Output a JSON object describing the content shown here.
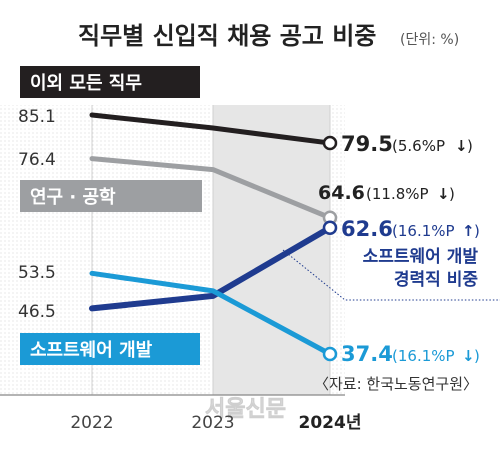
{
  "chart_data": {
    "type": "line",
    "title": "직무별 신입직 채용 공고 비중",
    "unit": "(단위: %)",
    "categories": [
      "2022",
      "2023",
      "2024년"
    ],
    "series": [
      {
        "name": "이외 모든 직무",
        "values": [
          85.1,
          82.5,
          79.5
        ],
        "start_label": "85.1",
        "end_label": "79.5",
        "change": "(5.6%P",
        "arrow": "↓",
        "color": "#231f20",
        "label_bg": "#231f20",
        "label_color": "#ffffff"
      },
      {
        "name": "연구 · 공학",
        "values": [
          76.4,
          74.2,
          64.6
        ],
        "start_label": "76.4",
        "end_label": "64.6",
        "change": "(11.8%P",
        "arrow": "↓",
        "color": "#9d9fa2",
        "label_bg": "#9d9fa2",
        "label_color": "#ffffff"
      },
      {
        "name": "소프트웨어 개발 경력직 비중",
        "values": [
          46.5,
          49.0,
          62.6
        ],
        "start_label": "46.5",
        "end_label": "62.6",
        "change": "(16.1%P",
        "arrow": "↑",
        "color": "#1f3b8f",
        "label_lines": [
          "소프트웨어 개발",
          "경력직 비중"
        ]
      },
      {
        "name": "소프트웨어 개발",
        "values": [
          53.5,
          50.0,
          37.4
        ],
        "start_label": "53.5",
        "end_label": "37.4",
        "change": "(16.1%P",
        "arrow": "↓",
        "color": "#1b9ad6",
        "label_bg": "#1b9ad6",
        "label_color": "#ffffff"
      }
    ],
    "source": "〈자료: 한국노동연구원〉",
    "watermark": "서울신문"
  }
}
